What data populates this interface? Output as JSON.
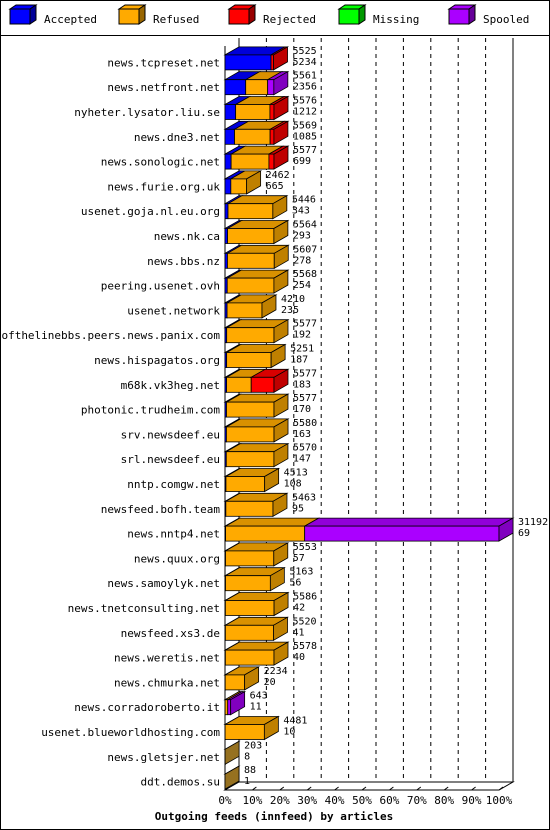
{
  "chart_data": {
    "type": "bar",
    "title": "Outgoing feeds (innfeed) by articles",
    "xlabel": "Outgoing feeds (innfeed) by articles",
    "x_ticks": [
      "0%",
      "10%",
      "20%",
      "30%",
      "40%",
      "50%",
      "60%",
      "70%",
      "80%",
      "90%",
      "100%"
    ],
    "xlim": [
      0,
      100
    ],
    "scale_max": 31192,
    "grid": true,
    "legend_position": "top",
    "legend": [
      {
        "name": "Accepted",
        "color": "#0000ff"
      },
      {
        "name": "Refused",
        "color": "#ffaa00"
      },
      {
        "name": "Rejected",
        "color": "#ff0000"
      },
      {
        "name": "Missing",
        "color": "#00ff00"
      },
      {
        "name": "Spooled",
        "color": "#aa00ff"
      }
    ],
    "end_cap_color": "#c8962a",
    "rows": [
      {
        "name": "news.tcpreset.net",
        "total": "5525",
        "second": "5234",
        "accepted": 5234,
        "refused": 0,
        "rejected": 291,
        "spooled": 0
      },
      {
        "name": "news.netfront.net",
        "total": "5561",
        "second": "2356",
        "accepted": 2356,
        "refused": 2500,
        "rejected": 0,
        "spooled": 705
      },
      {
        "name": "nyheter.lysator.liu.se",
        "total": "5576",
        "second": "1212",
        "accepted": 1212,
        "refused": 3900,
        "rejected": 464,
        "spooled": 0
      },
      {
        "name": "news.dne3.net",
        "total": "5569",
        "second": "1085",
        "accepted": 1085,
        "refused": 4050,
        "rejected": 434,
        "spooled": 0
      },
      {
        "name": "news.sonologic.net",
        "total": "5577",
        "second": "699",
        "accepted": 699,
        "refused": 4300,
        "rejected": 578,
        "spooled": 0
      },
      {
        "name": "news.furie.org.uk",
        "total": "2462",
        "second": "665",
        "accepted": 665,
        "refused": 1797,
        "rejected": 0,
        "spooled": 0
      },
      {
        "name": "usenet.goja.nl.eu.org",
        "total": "5446",
        "second": "343",
        "accepted": 343,
        "refused": 5103,
        "rejected": 0,
        "spooled": 0
      },
      {
        "name": "news.nk.ca",
        "total": "5564",
        "second": "293",
        "accepted": 293,
        "refused": 5271,
        "rejected": 0,
        "spooled": 0
      },
      {
        "name": "news.bbs.nz",
        "total": "5607",
        "second": "278",
        "accepted": 278,
        "refused": 5329,
        "rejected": 0,
        "spooled": 0
      },
      {
        "name": "peering.usenet.ovh",
        "total": "5568",
        "second": "254",
        "accepted": 254,
        "refused": 5314,
        "rejected": 0,
        "spooled": 0
      },
      {
        "name": "usenet.network",
        "total": "4210",
        "second": "235",
        "accepted": 235,
        "refused": 3975,
        "rejected": 0,
        "spooled": 0
      },
      {
        "name": "endofthelinebbs.peers.news.panix.com",
        "total": "5577",
        "second": "192",
        "accepted": 192,
        "refused": 5385,
        "rejected": 0,
        "spooled": 0
      },
      {
        "name": "news.hispagatos.org",
        "total": "5251",
        "second": "187",
        "accepted": 187,
        "refused": 5064,
        "rejected": 0,
        "spooled": 0
      },
      {
        "name": "m68k.vk3heg.net",
        "total": "5577",
        "second": "183",
        "accepted": 183,
        "refused": 2800,
        "rejected": 2594,
        "spooled": 0
      },
      {
        "name": "photonic.trudheim.com",
        "total": "5577",
        "second": "170",
        "accepted": 170,
        "refused": 5407,
        "rejected": 0,
        "spooled": 0
      },
      {
        "name": "srv.newsdeef.eu",
        "total": "5580",
        "second": "163",
        "accepted": 163,
        "refused": 5417,
        "rejected": 0,
        "spooled": 0
      },
      {
        "name": "srl.newsdeef.eu",
        "total": "5570",
        "second": "147",
        "accepted": 147,
        "refused": 5423,
        "rejected": 0,
        "spooled": 0
      },
      {
        "name": "nntp.comgw.net",
        "total": "4513",
        "second": "108",
        "accepted": 108,
        "refused": 4405,
        "rejected": 0,
        "spooled": 0
      },
      {
        "name": "newsfeed.bofh.team",
        "total": "5463",
        "second": "95",
        "accepted": 95,
        "refused": 5368,
        "rejected": 0,
        "spooled": 0
      },
      {
        "name": "news.nntp4.net",
        "total": "31192",
        "second": "69",
        "accepted": 69,
        "refused": 9000,
        "rejected": 0,
        "spooled": 22123
      },
      {
        "name": "news.quux.org",
        "total": "5553",
        "second": "57",
        "accepted": 57,
        "refused": 5496,
        "rejected": 0,
        "spooled": 0
      },
      {
        "name": "news.samoylyk.net",
        "total": "5163",
        "second": "56",
        "accepted": 56,
        "refused": 5107,
        "rejected": 0,
        "spooled": 0
      },
      {
        "name": "news.tnetconsulting.net",
        "total": "5586",
        "second": "42",
        "accepted": 42,
        "refused": 5544,
        "rejected": 0,
        "spooled": 0
      },
      {
        "name": "newsfeed.xs3.de",
        "total": "5520",
        "second": "41",
        "accepted": 41,
        "refused": 5479,
        "rejected": 0,
        "spooled": 0
      },
      {
        "name": "news.weretis.net",
        "total": "5578",
        "second": "40",
        "accepted": 40,
        "refused": 5538,
        "rejected": 0,
        "spooled": 0
      },
      {
        "name": "news.chmurka.net",
        "total": "2234",
        "second": "20",
        "accepted": 20,
        "refused": 2214,
        "rejected": 0,
        "spooled": 0
      },
      {
        "name": "news.corradoroberto.it",
        "total": "643",
        "second": "11",
        "accepted": 11,
        "refused": 300,
        "rejected": 0,
        "spooled": 332
      },
      {
        "name": "usenet.blueworldhosting.com",
        "total": "4481",
        "second": "10",
        "accepted": 10,
        "refused": 4471,
        "rejected": 0,
        "spooled": 0
      },
      {
        "name": "news.gletsjer.net",
        "total": "203",
        "second": "8",
        "accepted": 8,
        "refused": 0,
        "rejected": 0,
        "spooled": 0
      },
      {
        "name": "ddt.demos.su",
        "total": "88",
        "second": "1",
        "accepted": 1,
        "refused": 0,
        "rejected": 0,
        "spooled": 0
      }
    ]
  }
}
